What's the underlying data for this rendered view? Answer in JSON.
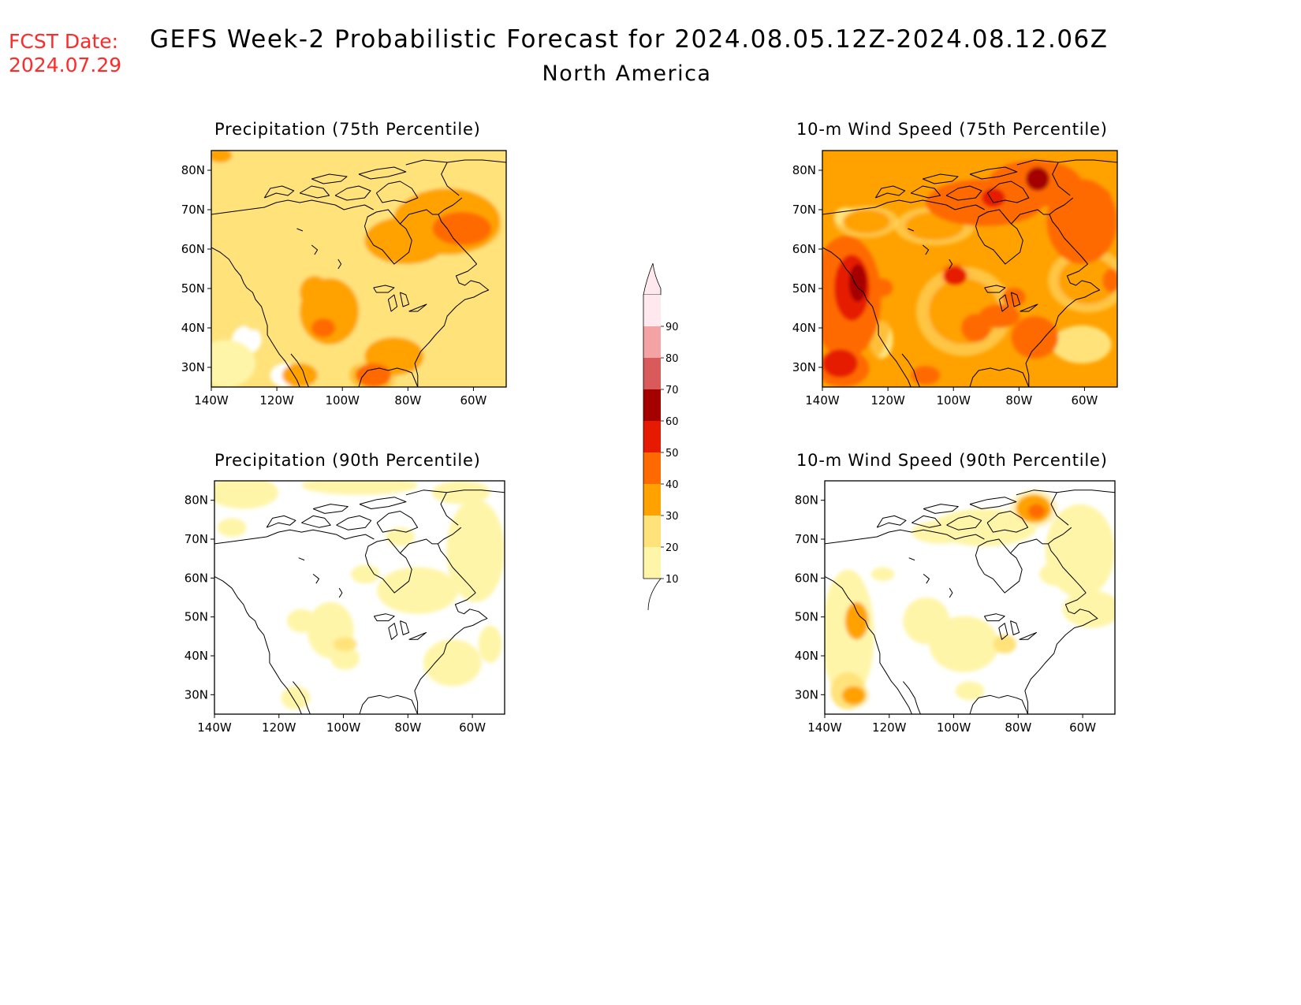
{
  "header": {
    "fcst_label": "FCST Date:",
    "fcst_date": "2024.07.29",
    "title": "GEFS Week-2 Probabilistic Forecast for 2024.08.05.12Z-2024.08.12.06Z",
    "subtitle": "North America"
  },
  "panels": [
    {
      "id": "precip75",
      "title": "Precipitation (75th Percentile)",
      "base_level": 20
    },
    {
      "id": "wind75",
      "title": "10-m Wind Speed (75th Percentile)",
      "base_level": 30
    },
    {
      "id": "precip90",
      "title": "Precipitation (90th Percentile)",
      "base_level": 0
    },
    {
      "id": "wind90",
      "title": "10-m Wind Speed (90th Percentile)",
      "base_level": 0
    }
  ],
  "axes": {
    "lat_labels": [
      "80N",
      "70N",
      "60N",
      "50N",
      "40N",
      "30N"
    ],
    "lon_labels": [
      "140W",
      "120W",
      "100W",
      "80W",
      "60W"
    ]
  },
  "colorbar": {
    "levels": [
      "10",
      "20",
      "30",
      "40",
      "50",
      "60",
      "70",
      "80",
      "90"
    ],
    "colors": [
      "#fff5a8",
      "#ffe27a",
      "#ffa200",
      "#ff6a00",
      "#e61a00",
      "#a50000",
      "#d95a5a",
      "#f3a3a3",
      "#ffe9ee"
    ],
    "low_color": "#ffffff"
  }
}
